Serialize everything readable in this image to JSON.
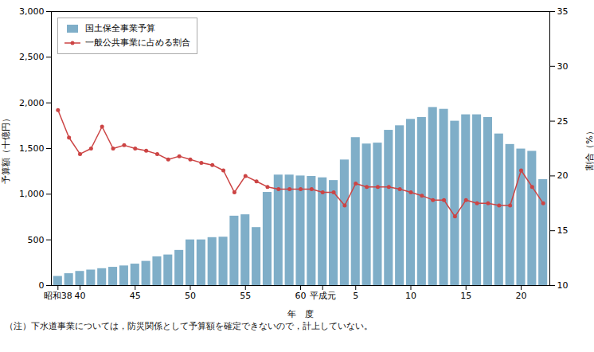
{
  "chart_data": {
    "type": "bar",
    "xlabel": "年　度",
    "ylabel": "予算額（十億円）",
    "y2label": "割合（%）",
    "annotations": [
      "（注）下水道事業については，防災関係として予算額を確定できないので，計上していない。"
    ],
    "categories": [
      "昭和38",
      null,
      "40",
      null,
      null,
      null,
      null,
      "45",
      null,
      null,
      null,
      null,
      "50",
      null,
      null,
      null,
      null,
      "55",
      null,
      null,
      null,
      null,
      "60",
      null,
      "平成元",
      null,
      null,
      "5",
      null,
      null,
      null,
      null,
      "10",
      null,
      null,
      null,
      null,
      "15",
      null,
      null,
      null,
      null,
      "20",
      null,
      null
    ],
    "series": [
      {
        "name": "国土保全事業予算",
        "type": "bar",
        "color": "#7faec8",
        "values": [
          100,
          130,
          155,
          170,
          185,
          200,
          215,
          235,
          265,
          315,
          335,
          385,
          500,
          500,
          525,
          530,
          760,
          775,
          635,
          1020,
          1210,
          1210,
          1200,
          1195,
          1180,
          1150,
          1375,
          1620,
          1550,
          1560,
          1700,
          1750,
          1820,
          1840,
          1950,
          1930,
          1800,
          1870,
          1870,
          1840,
          1660,
          1545,
          1495,
          1470,
          1160
        ]
      },
      {
        "name": "一般公共事業に占める割合",
        "type": "line",
        "axis": "y2",
        "color": "#cc4444",
        "marker": "o",
        "values": [
          26.0,
          23.5,
          22.0,
          22.5,
          24.5,
          22.5,
          22.8,
          22.5,
          22.3,
          22.0,
          21.5,
          21.8,
          21.5,
          21.2,
          21.0,
          20.5,
          18.5,
          20.0,
          19.5,
          19.0,
          18.8,
          18.8,
          18.8,
          18.8,
          18.5,
          18.5,
          17.3,
          19.3,
          19.0,
          19.0,
          19.0,
          18.8,
          18.5,
          18.2,
          17.8,
          17.8,
          16.3,
          17.8,
          17.5,
          17.5,
          17.3,
          17.3,
          20.5,
          19.0,
          17.5
        ]
      }
    ],
    "ylim": [
      0,
      3000
    ],
    "yticks": [
      0,
      500,
      {
        "value": 1000,
        "label": "1,000"
      },
      {
        "value": 1500,
        "label": "1,500"
      },
      {
        "value": 2000,
        "label": "2,000"
      },
      {
        "value": 2500,
        "label": "2,500"
      },
      {
        "value": 3000,
        "label": "3,000"
      }
    ],
    "y2lim": [
      10,
      35
    ],
    "y2ticks": [
      10,
      15,
      20,
      25,
      30,
      35
    ],
    "grid": false,
    "legend": "upper left"
  }
}
